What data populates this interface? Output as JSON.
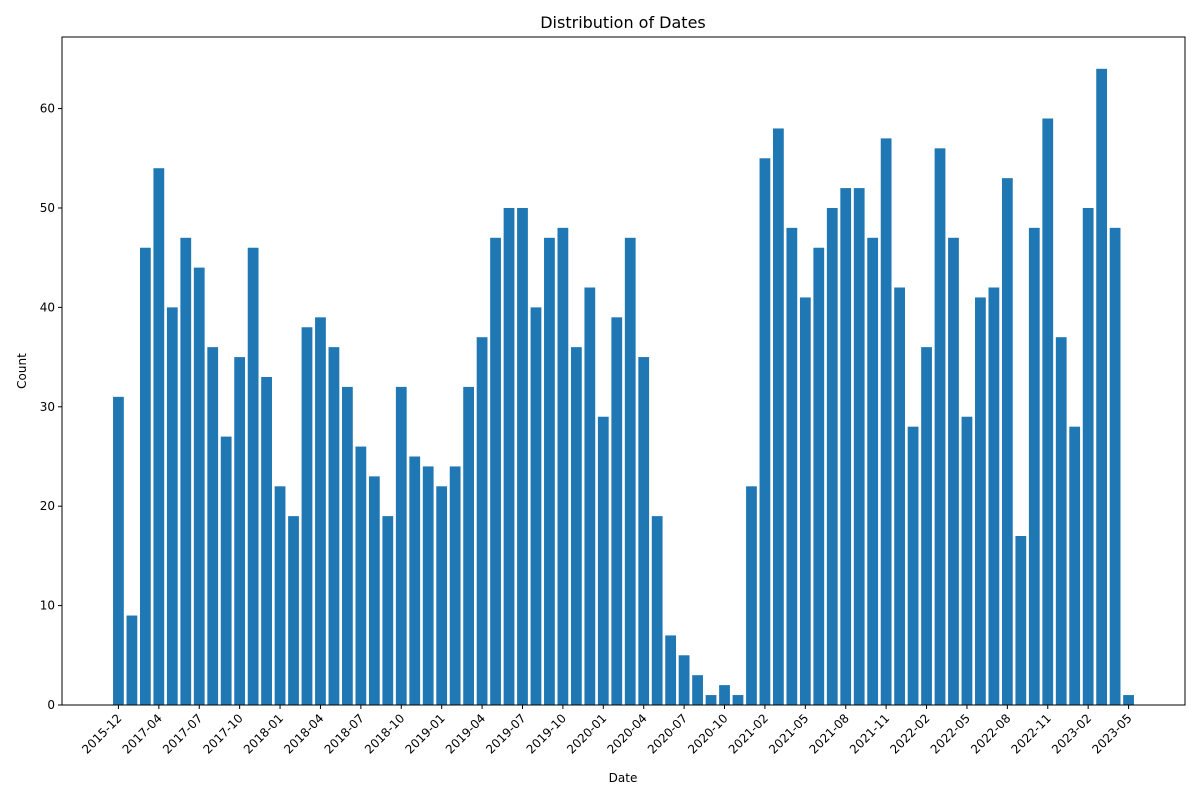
{
  "chart_data": {
    "type": "bar",
    "title": "Distribution of Dates",
    "x_label": "Date",
    "y_label": "Count",
    "categories": [
      "2015-12",
      null,
      null,
      "2017-04",
      null,
      null,
      "2017-07",
      null,
      null,
      "2017-10",
      null,
      null,
      "2018-01",
      null,
      null,
      "2018-04",
      null,
      null,
      "2018-07",
      null,
      null,
      "2018-10",
      null,
      null,
      "2019-01",
      null,
      null,
      "2019-04",
      null,
      null,
      "2019-07",
      null,
      null,
      "2019-10",
      null,
      null,
      "2020-01",
      null,
      null,
      "2020-04",
      null,
      null,
      "2020-07",
      null,
      null,
      "2020-10",
      null,
      null,
      "2021-02",
      null,
      null,
      "2021-05",
      null,
      null,
      "2021-08",
      null,
      null,
      "2021-11",
      null,
      null,
      "2022-02",
      null,
      null,
      "2022-05",
      null,
      null,
      "2022-08",
      null,
      null,
      "2022-11",
      null,
      null,
      "2023-02",
      null,
      null,
      "2023-05"
    ],
    "values": [
      31,
      9,
      46,
      54,
      40,
      47,
      44,
      36,
      27,
      35,
      46,
      33,
      22,
      19,
      38,
      39,
      36,
      32,
      26,
      23,
      19,
      32,
      25,
      24,
      22,
      24,
      32,
      37,
      47,
      50,
      50,
      40,
      47,
      48,
      36,
      42,
      29,
      39,
      47,
      35,
      19,
      7,
      5,
      3,
      1,
      2,
      1,
      22,
      55,
      58,
      48,
      41,
      46,
      50,
      52,
      52,
      47,
      57,
      42,
      28,
      36,
      56,
      47,
      29,
      41,
      42,
      53,
      17,
      48,
      59,
      37,
      28,
      50,
      64,
      48,
      1
    ],
    "color": "#1f77b4",
    "ylim": [
      0,
      67.2
    ],
    "yticks": [
      0,
      10,
      20,
      30,
      40,
      50,
      60
    ],
    "grid": false
  }
}
